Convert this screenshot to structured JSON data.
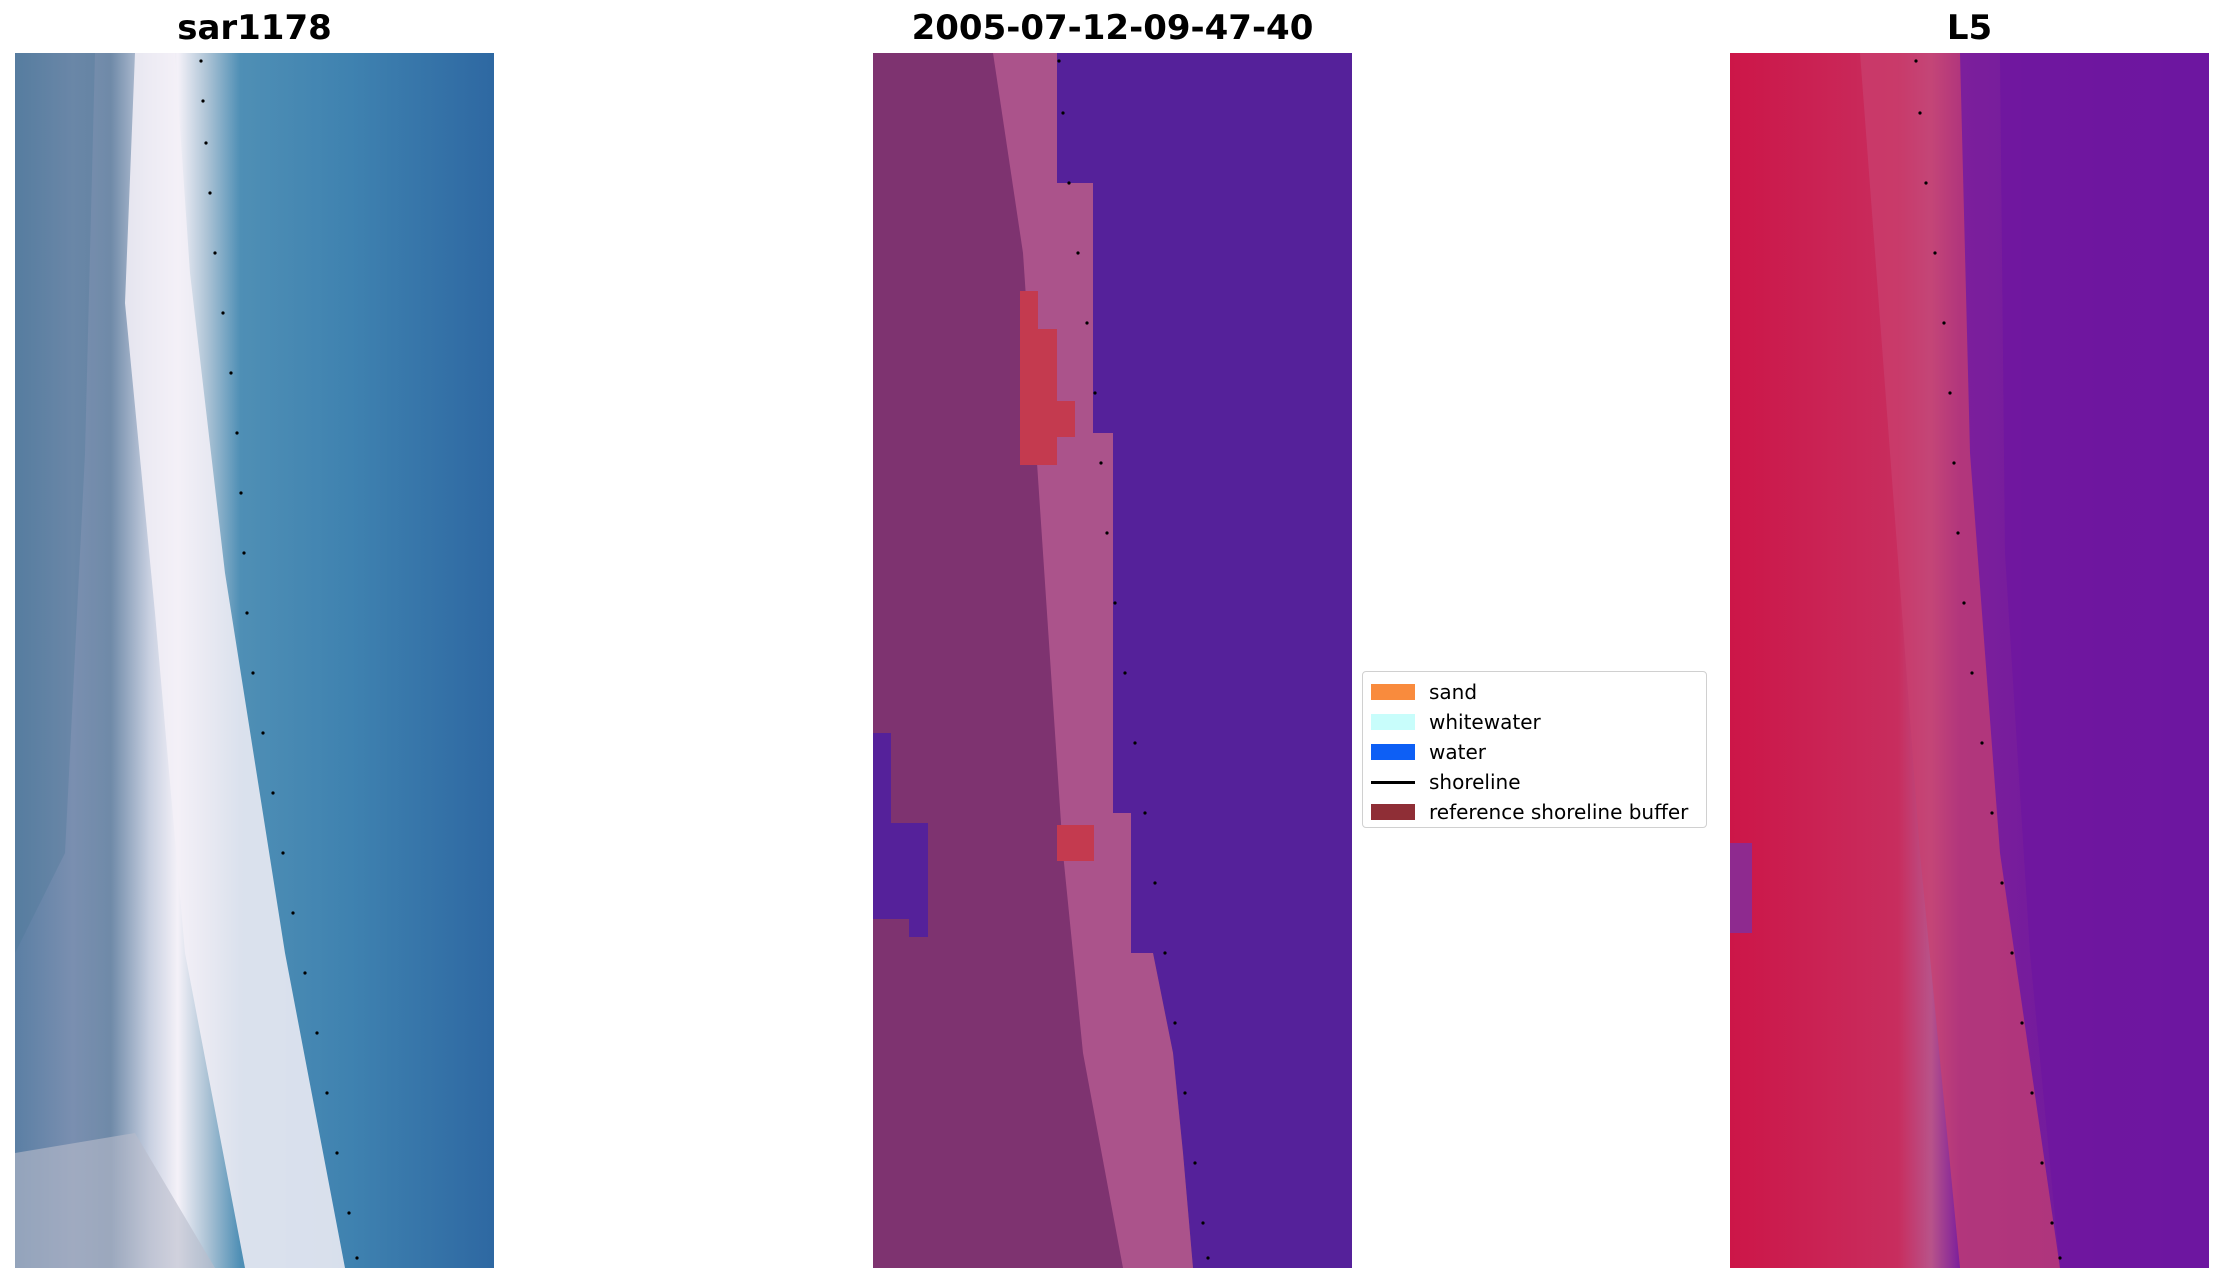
{
  "panels": {
    "left": {
      "title": "sar1178"
    },
    "middle": {
      "title": "2005-07-12-09-47-40"
    },
    "right": {
      "title": "L5"
    }
  },
  "legend": {
    "items": [
      {
        "label": "sand",
        "color": "#f98b3d",
        "kind": "patch"
      },
      {
        "label": "whitewater",
        "color": "#c8fdfb",
        "kind": "patch"
      },
      {
        "label": "water",
        "color": "#0d5ff5",
        "kind": "patch"
      },
      {
        "label": "shoreline",
        "color": "#000000",
        "kind": "line"
      },
      {
        "label": "reference shoreline buffer",
        "color": "#8f2e36",
        "kind": "patch"
      }
    ]
  },
  "colors": {
    "rgb_water": "#3374a8",
    "rgb_surf": "#f5f2f8",
    "class_land": "#7e3370",
    "class_water": "#55219a",
    "class_buffer": "#c43a4f",
    "class_band": "#b3598f",
    "index_land": "#cc1648",
    "index_water": "#6e16a0",
    "shoreline_dots": "#000000"
  }
}
